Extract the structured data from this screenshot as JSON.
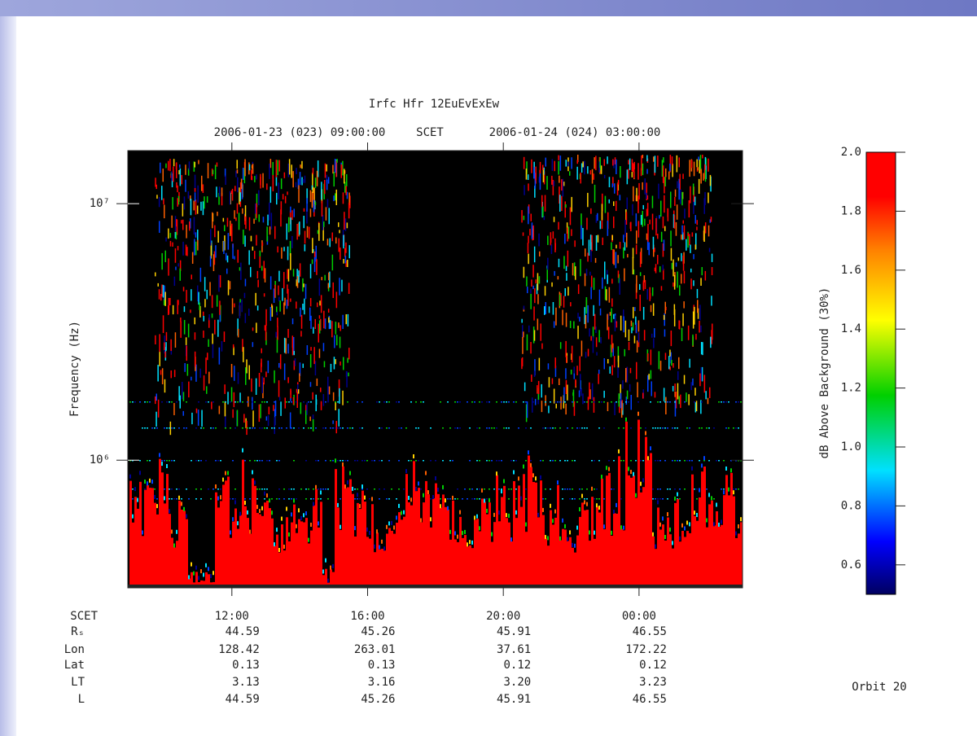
{
  "chart_data": {
    "type": "spectrogram",
    "title": "Irfc Hfr 12EuEvExEw",
    "top_labels": [
      "2006-01-23 (023) 09:00:00",
      "SCET",
      "2006-01-24 (024) 03:00:00"
    ],
    "ylabel": "Frequency (Hz)",
    "log_y": true,
    "ylim": [
      318000,
      16100000
    ],
    "yticks": [
      {
        "value": 1000000,
        "label": "10⁶"
      },
      {
        "value": 10000000,
        "label": "10⁷"
      }
    ],
    "xlim": [
      "2006-01-23T08:56",
      "2006-01-24T03:03"
    ],
    "xticks": [
      {
        "value": "2006-01-23T12:00",
        "label": "12:00"
      },
      {
        "value": "2006-01-23T16:00",
        "label": "16:00"
      },
      {
        "value": "2006-01-23T20:00",
        "label": "20:00"
      },
      {
        "value": "2006-01-24T00:00",
        "label": "00:00"
      }
    ],
    "colorbar": {
      "label": "dB Above Background (30%)",
      "clim": [
        0.5,
        2.0
      ],
      "ticks": [
        0.6,
        0.8,
        {
          "value": 1.0,
          "label": "1.0"
        },
        1.2,
        1.4,
        1.6,
        1.8,
        {
          "value": 2.0,
          "label": "2.0"
        }
      ]
    },
    "ephemeris": {
      "labels": [
        "SCET",
        "Rₛ",
        "Lon",
        "Lat",
        "LT",
        "L"
      ],
      "rows": [
        [
          "44.59",
          "45.26",
          "45.91",
          "46.55"
        ],
        [
          "128.42",
          "263.01",
          "37.61",
          "172.22"
        ],
        [
          "0.13",
          "0.13",
          "0.12",
          "0.12"
        ],
        [
          "3.13",
          "3.16",
          "3.20",
          "3.23"
        ],
        [
          "44.59",
          "45.26",
          "45.91",
          "46.55"
        ]
      ]
    },
    "footer": "Orbit 20"
  }
}
